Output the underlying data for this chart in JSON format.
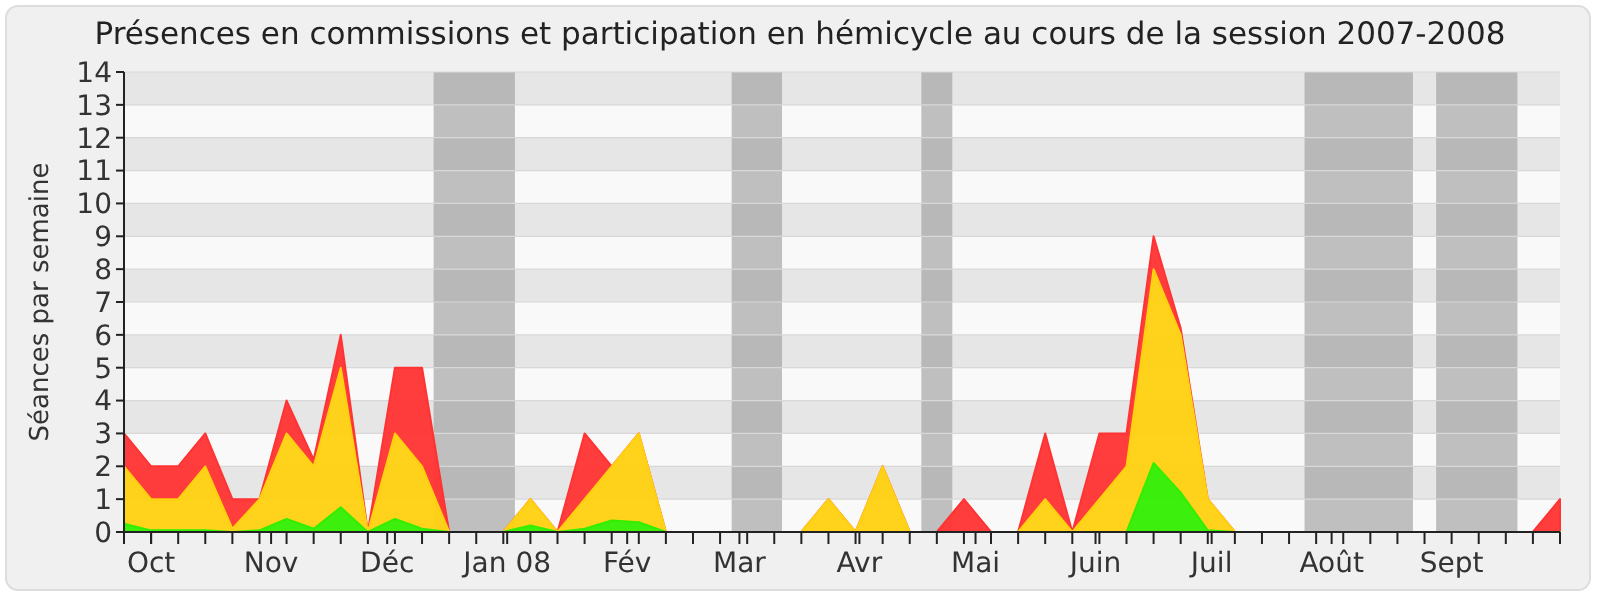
{
  "chart_data": {
    "type": "area",
    "stacked": true,
    "title": "Présences en commissions et participation en hémicycle au cours de la session 2007-2008",
    "ylabel": "Séances par semaine",
    "x": [
      "2007-09-24",
      "2007-10-01",
      "2007-10-08",
      "2007-10-15",
      "2007-10-22",
      "2007-10-29",
      "2007-11-05",
      "2007-11-12",
      "2007-11-19",
      "2007-11-26",
      "2007-12-03",
      "2007-12-10",
      "2007-12-17",
      "2007-12-24",
      "2007-12-31",
      "2008-01-07",
      "2008-01-14",
      "2008-01-21",
      "2008-01-28",
      "2008-02-04",
      "2008-02-11",
      "2008-02-18",
      "2008-02-25",
      "2008-03-03",
      "2008-03-10",
      "2008-03-17",
      "2008-03-24",
      "2008-03-31",
      "2008-04-07",
      "2008-04-14",
      "2008-04-21",
      "2008-04-28",
      "2008-05-05",
      "2008-05-12",
      "2008-05-19",
      "2008-05-26",
      "2008-06-02",
      "2008-06-09",
      "2008-06-16",
      "2008-06-23",
      "2008-06-30",
      "2008-07-07",
      "2008-07-14",
      "2008-07-21",
      "2008-07-28",
      "2008-08-04",
      "2008-08-11",
      "2008-08-18",
      "2008-08-25",
      "2008-09-01",
      "2008-09-08",
      "2008-09-15",
      "2008-09-22",
      "2008-09-29"
    ],
    "series": [
      {
        "color": "#33ee00",
        "values": [
          0.25,
          0.05,
          0.05,
          0.05,
          0,
          0.05,
          0.4,
          0.1,
          0.75,
          0,
          0.4,
          0.1,
          0,
          0,
          0,
          0.2,
          0,
          0.1,
          0.35,
          0.3,
          0,
          0,
          0,
          0,
          0,
          0,
          0,
          0,
          0,
          0,
          0,
          0,
          0,
          0,
          0,
          0,
          0,
          0,
          2.1,
          1.2,
          0.05,
          0,
          0,
          0,
          0,
          0,
          0,
          0,
          0,
          0,
          0,
          0,
          0,
          0
        ]
      },
      {
        "color": "#ffd10f",
        "values": [
          1.75,
          0.95,
          0.95,
          1.95,
          0.1,
          0.95,
          2.6,
          1.9,
          4.25,
          0,
          2.6,
          1.9,
          0,
          0,
          0,
          0.8,
          0,
          0.9,
          1.65,
          2.7,
          0,
          0,
          0,
          0,
          0,
          0,
          1,
          0,
          2,
          0,
          0,
          0,
          0,
          0,
          1,
          0,
          1,
          2,
          5.9,
          4.8,
          0.95,
          0,
          0,
          0,
          0,
          0,
          0,
          0,
          0,
          0,
          0,
          0,
          0,
          0
        ]
      },
      {
        "color": "#ff3333",
        "values": [
          1,
          1,
          1,
          1,
          0.9,
          0,
          1,
          0.2,
          1,
          0,
          2,
          3,
          0,
          0,
          0,
          0,
          0,
          2,
          0,
          0,
          0,
          0,
          0,
          0,
          0,
          0,
          0,
          0,
          0,
          0,
          0,
          1,
          0,
          0,
          2,
          0,
          2,
          1,
          1,
          0.2,
          0,
          0,
          0,
          0,
          0,
          0,
          0,
          0,
          0,
          0,
          0,
          0,
          0,
          1
        ]
      }
    ],
    "xlim": [
      "2007-09-24",
      "2008-09-29"
    ],
    "xticks": [
      {
        "value": "2007-09-24",
        "label": null
      },
      {
        "value": "2007-10-01",
        "label": "Oct"
      },
      {
        "value": "2007-10-01",
        "label": null
      },
      {
        "value": "2007-10-08",
        "label": null
      },
      {
        "value": "2007-10-15",
        "label": null
      },
      {
        "value": "2007-10-22",
        "label": null
      },
      {
        "value": "2007-10-29",
        "label": null
      },
      {
        "value": "2007-11-01",
        "label": "Nov"
      },
      {
        "value": "2007-11-05",
        "label": null
      },
      {
        "value": "2007-11-12",
        "label": null
      },
      {
        "value": "2007-11-19",
        "label": null
      },
      {
        "value": "2007-11-26",
        "label": null
      },
      {
        "value": "2007-12-03",
        "label": null
      },
      {
        "value": "2007-12-01",
        "label": "Déc"
      },
      {
        "value": "2007-12-10",
        "label": null
      },
      {
        "value": "2007-12-17",
        "label": null
      },
      {
        "value": "2007-12-24",
        "label": null
      },
      {
        "value": "2007-12-31",
        "label": null
      },
      {
        "value": "2008-01-01",
        "label": "Jan 08"
      },
      {
        "value": "2008-01-07",
        "label": null
      },
      {
        "value": "2008-01-14",
        "label": null
      },
      {
        "value": "2008-01-21",
        "label": null
      },
      {
        "value": "2008-02-01",
        "label": "Fév"
      },
      {
        "value": "2008-01-28",
        "label": null
      },
      {
        "value": "2008-02-04",
        "label": null
      },
      {
        "value": "2008-02-11",
        "label": null
      },
      {
        "value": "2008-02-18",
        "label": null
      },
      {
        "value": "2008-03-01",
        "label": "Mar"
      },
      {
        "value": "2008-02-25",
        "label": null
      },
      {
        "value": "2008-03-03",
        "label": null
      },
      {
        "value": "2008-03-10",
        "label": null
      },
      {
        "value": "2008-03-17",
        "label": null
      },
      {
        "value": "2008-03-24",
        "label": null
      },
      {
        "value": "2008-04-01",
        "label": "Avr"
      },
      {
        "value": "2008-03-31",
        "label": null
      },
      {
        "value": "2008-04-07",
        "label": null
      },
      {
        "value": "2008-04-14",
        "label": null
      },
      {
        "value": "2008-04-21",
        "label": null
      },
      {
        "value": "2008-05-01",
        "label": "Mai"
      },
      {
        "value": "2008-04-28",
        "label": null
      },
      {
        "value": "2008-05-05",
        "label": null
      },
      {
        "value": "2008-05-12",
        "label": null
      },
      {
        "value": "2008-05-19",
        "label": null
      },
      {
        "value": "2008-05-26",
        "label": null
      },
      {
        "value": "2008-06-01",
        "label": "Juin"
      },
      {
        "value": "2008-06-02",
        "label": null
      },
      {
        "value": "2008-06-09",
        "label": null
      },
      {
        "value": "2008-06-16",
        "label": null
      },
      {
        "value": "2008-06-23",
        "label": null
      },
      {
        "value": "2008-07-01",
        "label": "Juil"
      },
      {
        "value": "2008-06-30",
        "label": null
      },
      {
        "value": "2008-07-07",
        "label": null
      },
      {
        "value": "2008-07-14",
        "label": null
      },
      {
        "value": "2008-07-21",
        "label": null
      },
      {
        "value": "2008-07-28",
        "label": null
      },
      {
        "value": "2008-08-01",
        "label": "Août"
      },
      {
        "value": "2008-08-04",
        "label": null
      },
      {
        "value": "2008-08-11",
        "label": null
      },
      {
        "value": "2008-08-18",
        "label": null
      },
      {
        "value": "2008-08-25",
        "label": null
      },
      {
        "value": "2008-09-01",
        "label": "Sept"
      },
      {
        "value": "2008-09-08",
        "label": null
      },
      {
        "value": "2008-09-15",
        "label": null
      },
      {
        "value": "2008-09-22",
        "label": null
      },
      {
        "value": "2008-09-29",
        "label": null
      }
    ],
    "ylim": [
      0,
      14
    ],
    "yticks": [
      0,
      1,
      2,
      3,
      4,
      5,
      6,
      7,
      8,
      9,
      10,
      11,
      12,
      13,
      14
    ],
    "grid": "y",
    "bands": [
      {
        "axis": "x",
        "from": "2007-12-13",
        "to": "2008-01-03",
        "color": "#a0a0a0"
      },
      {
        "axis": "x",
        "from": "2008-02-28",
        "to": "2008-03-12",
        "color": "#a0a0a0"
      },
      {
        "axis": "x",
        "from": "2008-04-17",
        "to": "2008-04-25",
        "color": "#a0a0a0"
      },
      {
        "axis": "x",
        "from": "2008-07-25",
        "to": "2008-08-22",
        "color": "#a0a0a0"
      },
      {
        "axis": "x",
        "from": "2008-08-28",
        "to": "2008-09-18",
        "color": "#a0a0a0"
      }
    ]
  }
}
